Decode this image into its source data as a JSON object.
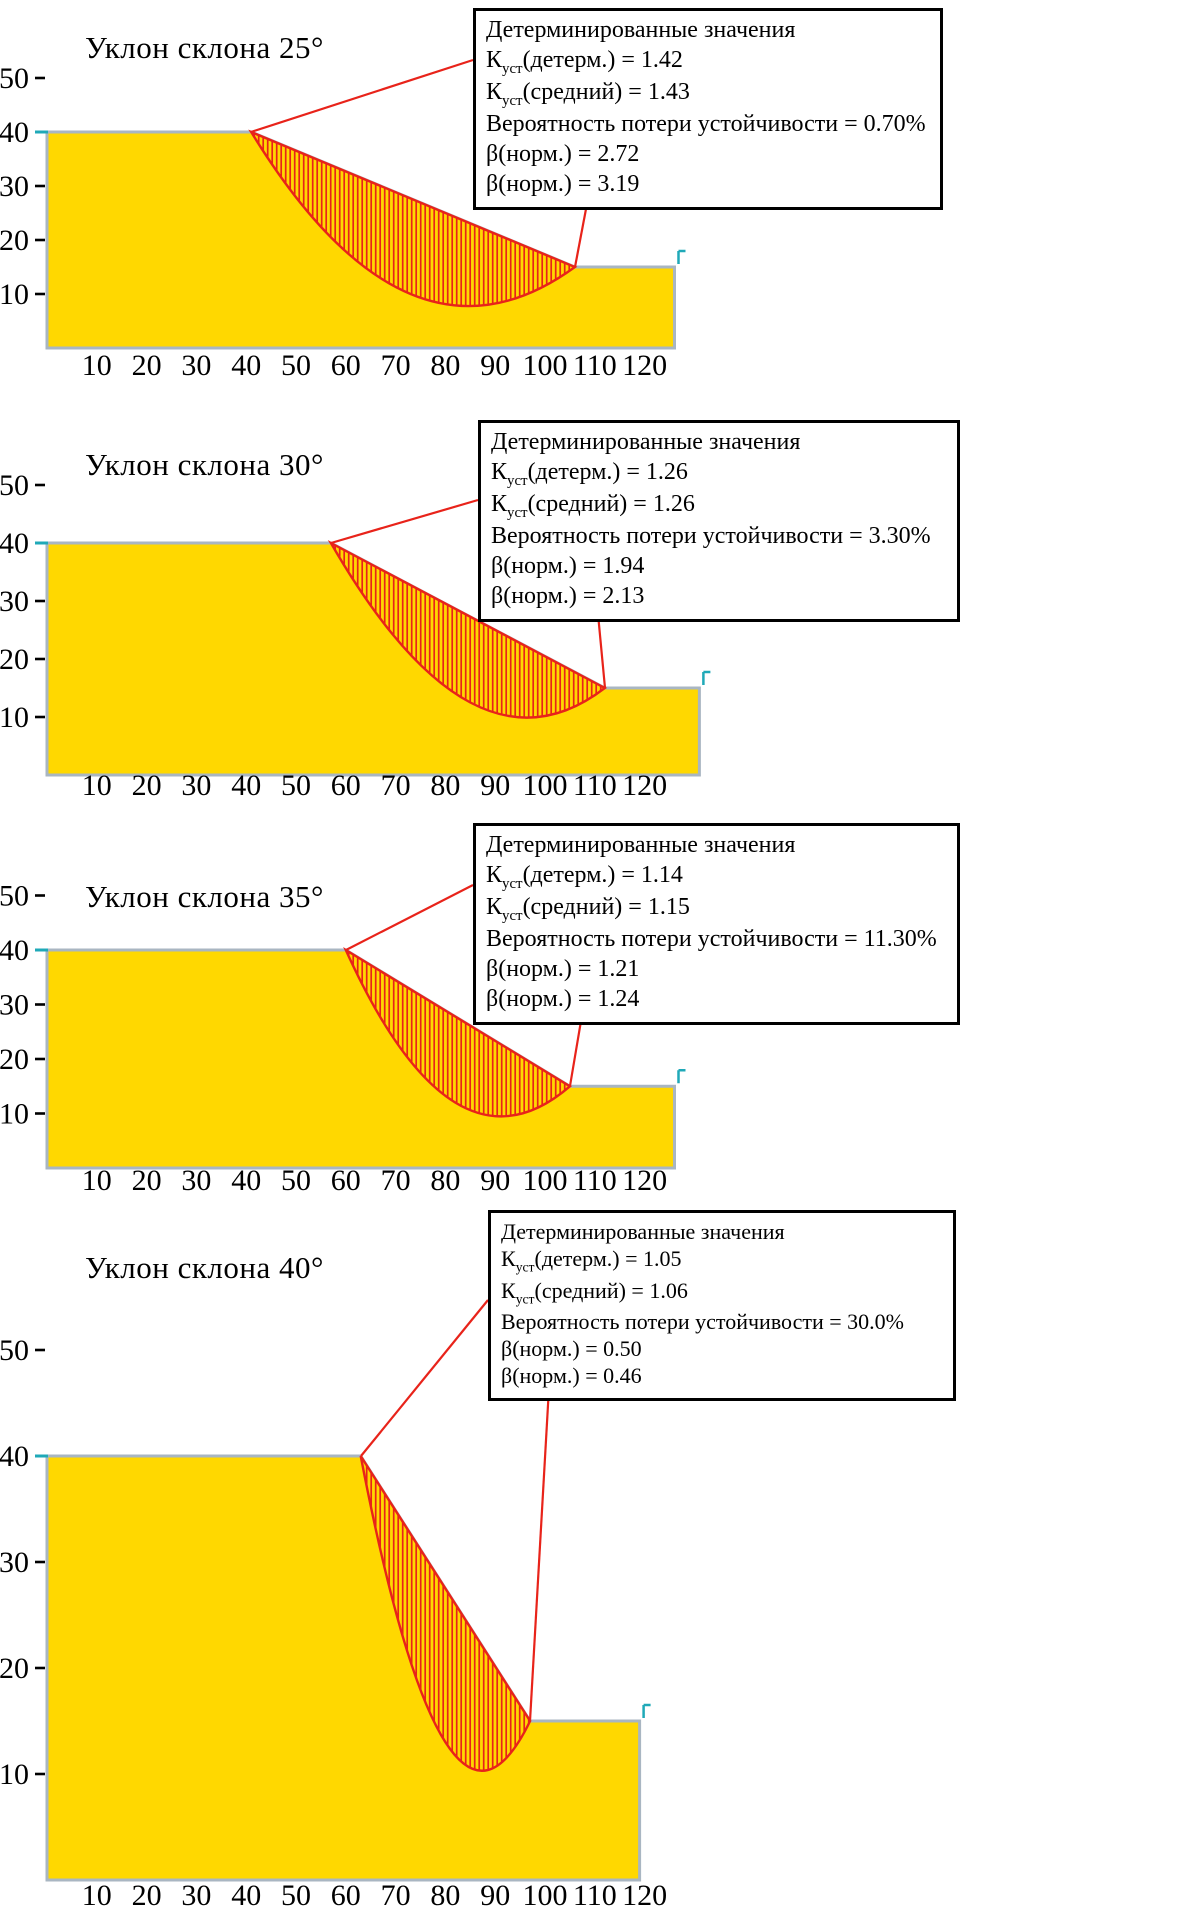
{
  "colors": {
    "yellow": "#FFD800",
    "red": "#E8231A",
    "grey": "#A9B6C2",
    "teal": "#1FA9B8",
    "box_border": "#000000"
  },
  "panels": [
    {
      "title": "Уклон склона 25°",
      "box": {
        "header": "Детерминированные значения",
        "k_det_pre": "К",
        "k_det_sub": "уст",
        "k_det_post": "(детерм.) = 1.42",
        "k_avg_pre": "К",
        "k_avg_sub": "уст",
        "k_avg_post": "(средний) = 1.43",
        "prob": "Вероятность потери устойчивости = 0.70%",
        "beta1": "β(норм.) = 2.72",
        "beta2": "β(норм.) = 3.19"
      }
    },
    {
      "title": "Уклон склона 30°",
      "box": {
        "header": "Детерминированные значения",
        "k_det_pre": "К",
        "k_det_sub": "уст",
        "k_det_post": "(детерм.) = 1.26",
        "k_avg_pre": "К",
        "k_avg_sub": "уст",
        "k_avg_post": "(средний) = 1.26",
        "prob": "Вероятность потери устойчивости = 3.30%",
        "beta1": "β(норм.) = 1.94",
        "beta2": "β(норм.) = 2.13"
      }
    },
    {
      "title": "Уклон склона 35°",
      "box": {
        "header": "Детерминированные значения",
        "k_det_pre": "К",
        "k_det_sub": "уст",
        "k_det_post": "(детерм.) = 1.14",
        "k_avg_pre": "К",
        "k_avg_sub": "уст",
        "k_avg_post": "(средний) = 1.15",
        "prob": "Вероятность потери устойчивости = 11.30%",
        "beta1": "β(норм.) = 1.21",
        "beta2": "β(норм.) = 1.24"
      }
    },
    {
      "title": "Уклон склона 40°",
      "box": {
        "header": "Детерминированные значения",
        "k_det_pre": "К",
        "k_det_sub": "уст",
        "k_det_post": "(детерм.) = 1.05",
        "k_avg_pre": "К",
        "k_avg_sub": "уст",
        "k_avg_post": "(средний) = 1.06",
        "prob": "Вероятность потери устойчивости = 30.0%",
        "beta1": "β(норм.) = 0.50",
        "beta2": "β(норм.) = 0.46"
      }
    }
  ],
  "chart_data": [
    {
      "type": "area",
      "title": "Уклон склона 25°",
      "xlabel": "",
      "ylabel": "",
      "xlim": [
        0,
        130
      ],
      "ylim": [
        0,
        60
      ],
      "x_ticks": [
        10,
        20,
        30,
        40,
        50,
        60,
        70,
        80,
        90,
        100,
        110,
        120
      ],
      "y_ticks": [
        10,
        20,
        30,
        40,
        50
      ],
      "profile": {
        "surface_y": 40,
        "bench_y": 15,
        "crest_x": 41,
        "toe_x": 106,
        "bench_end_x": 126,
        "arc_ctrl": [
          72.5,
          -7.5
        ]
      },
      "slip_surface": {
        "crest": [
          41,
          40
        ],
        "toe": [
          106,
          15
        ],
        "lowest_point": [
          73,
          10
        ]
      },
      "stats": {
        "k_det": 1.42,
        "k_mean": 1.43,
        "failure_probability_pct": 0.7,
        "beta_norm_1": 2.72,
        "beta_norm_2": 3.19
      }
    },
    {
      "type": "area",
      "title": "Уклон склона 30°",
      "xlabel": "",
      "ylabel": "",
      "xlim": [
        0,
        135
      ],
      "ylim": [
        0,
        60
      ],
      "x_ticks": [
        10,
        20,
        30,
        40,
        50,
        60,
        70,
        80,
        90,
        100,
        110,
        120
      ],
      "y_ticks": [
        10,
        20,
        30,
        40,
        50
      ],
      "profile": {
        "surface_y": 40,
        "bench_y": 15,
        "crest_x": 57,
        "toe_x": 112,
        "bench_end_x": 131,
        "arc_ctrl": [
          85.5,
          -2.5
        ]
      },
      "slip_surface": {
        "crest": [
          57,
          40
        ],
        "toe": [
          112,
          15
        ],
        "lowest_point": [
          85,
          12.5
        ]
      },
      "stats": {
        "k_det": 1.26,
        "k_mean": 1.26,
        "failure_probability_pct": 3.3,
        "beta_norm_1": 1.94,
        "beta_norm_2": 2.13
      }
    },
    {
      "type": "area",
      "title": "Уклон склона 35°",
      "xlabel": "",
      "ylabel": "",
      "xlim": [
        0,
        130
      ],
      "ylim": [
        0,
        60
      ],
      "x_ticks": [
        10,
        20,
        30,
        40,
        50,
        60,
        70,
        80,
        90,
        100,
        110,
        120
      ],
      "y_ticks": [
        10,
        20,
        30,
        40,
        50
      ],
      "profile": {
        "surface_y": 40,
        "bench_y": 15,
        "crest_x": 60,
        "toe_x": 105,
        "bench_end_x": 126,
        "arc_ctrl": [
          81.5,
          -3.5
        ]
      },
      "slip_surface": {
        "crest": [
          60,
          40
        ],
        "toe": [
          105,
          15
        ],
        "lowest_point": [
          82,
          12
        ]
      },
      "stats": {
        "k_det": 1.14,
        "k_mean": 1.15,
        "failure_probability_pct": 11.3,
        "beta_norm_1": 1.21,
        "beta_norm_2": 1.24
      }
    },
    {
      "type": "area",
      "title": "Уклон склона 40°",
      "xlabel": "",
      "ylabel": "",
      "xlim": [
        0,
        125
      ],
      "ylim": [
        0,
        60
      ],
      "x_ticks": [
        10,
        20,
        30,
        40,
        50,
        60,
        70,
        80,
        90,
        100,
        110,
        120
      ],
      "y_ticks": [
        10,
        20,
        30,
        40,
        50
      ],
      "profile": {
        "surface_y": 40,
        "bench_y": 15,
        "crest_x": 63,
        "toe_x": 97,
        "bench_end_x": 119,
        "arc_ctrl": [
          80,
          -1.5
        ]
      },
      "slip_surface": {
        "crest": [
          63,
          40
        ],
        "toe": [
          97,
          15
        ],
        "lowest_point": [
          80,
          13
        ]
      },
      "stats": {
        "k_det": 1.05,
        "k_mean": 1.06,
        "failure_probability_pct": 30.0,
        "beta_norm_1": 0.5,
        "beta_norm_2": 0.46
      }
    }
  ]
}
